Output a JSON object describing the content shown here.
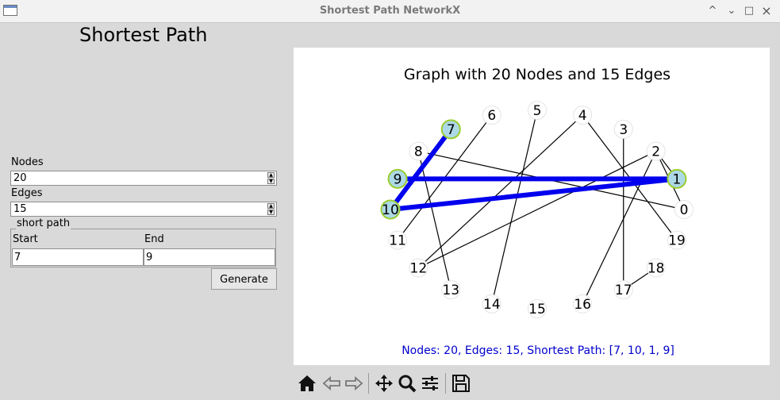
{
  "window": {
    "title": "Shortest Path NetworkX",
    "controls": [
      "^",
      "⌄",
      "□",
      "×"
    ]
  },
  "heading": "Shortest Path",
  "nodes_field": {
    "label": "Nodes",
    "value": "20"
  },
  "edges_field": {
    "label": "Edges",
    "value": "15"
  },
  "short_path": {
    "group_title": "short path",
    "start_label": "Start",
    "end_label": "End",
    "start_value": "7",
    "end_value": "9"
  },
  "generate_label": "Generate",
  "plot": {
    "title": "Graph with 20 Nodes and 15 Edges",
    "footer": "Nodes: 20, Edges: 15, Shortest Path: [7, 10, 1, 9]",
    "footer_color": "#0000cc",
    "path_color": "#0000ee",
    "highlight_fill": "#add8e6",
    "highlight_border": "#9acd32",
    "nodes": [
      "0",
      "1",
      "2",
      "3",
      "4",
      "5",
      "6",
      "7",
      "8",
      "9",
      "10",
      "11",
      "12",
      "13",
      "14",
      "15",
      "16",
      "17",
      "18",
      "19"
    ],
    "edges": [
      [
        "8",
        "0"
      ],
      [
        "6",
        "11"
      ],
      [
        "4",
        "12"
      ],
      [
        "4",
        "19"
      ],
      [
        "5",
        "14"
      ],
      [
        "3",
        "17"
      ],
      [
        "2",
        "12"
      ],
      [
        "2",
        "0"
      ],
      [
        "2",
        "16"
      ],
      [
        "8",
        "13"
      ],
      [
        "18",
        "17"
      ],
      [
        "1",
        "2"
      ],
      [
        "7",
        "10"
      ],
      [
        "10",
        "1"
      ],
      [
        "1",
        "9"
      ]
    ],
    "shortest_path": [
      "7",
      "10",
      "1",
      "9"
    ]
  },
  "toolbar": [
    "home-icon",
    "back-icon",
    "forward-icon",
    "pan-icon",
    "zoom-icon",
    "configure-icon",
    "save-icon"
  ]
}
